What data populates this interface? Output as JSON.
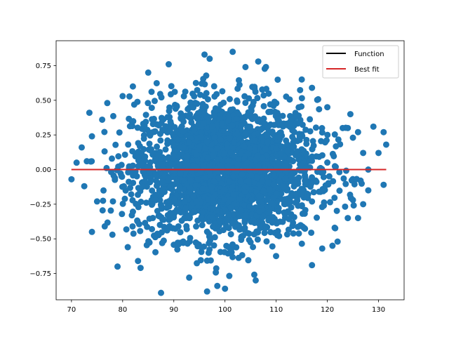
{
  "chart_data": {
    "type": "scatter",
    "title": "",
    "xlabel": "",
    "ylabel": "",
    "xlim": [
      67,
      135
    ],
    "ylim": [
      -0.94,
      0.93
    ],
    "x_ticks": [
      70,
      80,
      90,
      100,
      110,
      120,
      130
    ],
    "x_tick_labels": [
      "70",
      "80",
      "90",
      "100",
      "110",
      "120",
      "130"
    ],
    "y_ticks": [
      -0.75,
      -0.5,
      -0.25,
      0.0,
      0.25,
      0.5,
      0.75
    ],
    "y_tick_labels": [
      "−0.75",
      "−0.50",
      "−0.25",
      "0.00",
      "0.25",
      "0.50",
      "0.75"
    ],
    "grid": false,
    "legend_position": "top-right",
    "scatter": {
      "color": "#1f77b4",
      "cloud": {
        "x_mean": 100,
        "x_std": 9,
        "y_mean": 0,
        "y_std": 0.25
      },
      "outliers": [
        {
          "x": 70,
          "y": -0.07
        },
        {
          "x": 71,
          "y": 0.05
        },
        {
          "x": 72,
          "y": 0.16
        },
        {
          "x": 72.5,
          "y": -0.12
        },
        {
          "x": 73,
          "y": 0.06
        },
        {
          "x": 73.5,
          "y": 0.41
        },
        {
          "x": 74,
          "y": 0.24
        },
        {
          "x": 74,
          "y": -0.45
        },
        {
          "x": 75,
          "y": -0.23
        },
        {
          "x": 76,
          "y": 0.36
        },
        {
          "x": 76.5,
          "y": -0.41
        },
        {
          "x": 77,
          "y": 0.48
        },
        {
          "x": 78,
          "y": -0.47
        },
        {
          "x": 79,
          "y": -0.7
        },
        {
          "x": 80,
          "y": 0.53
        },
        {
          "x": 81,
          "y": -0.56
        },
        {
          "x": 82,
          "y": 0.6
        },
        {
          "x": 83,
          "y": -0.66
        },
        {
          "x": 83.5,
          "y": -0.71
        },
        {
          "x": 85,
          "y": 0.7
        },
        {
          "x": 87.5,
          "y": -0.89
        },
        {
          "x": 89,
          "y": 0.76
        },
        {
          "x": 93,
          "y": -0.78
        },
        {
          "x": 96,
          "y": 0.83
        },
        {
          "x": 96.5,
          "y": -0.88
        },
        {
          "x": 97,
          "y": 0.8
        },
        {
          "x": 98.5,
          "y": -0.84
        },
        {
          "x": 100,
          "y": -0.86
        },
        {
          "x": 101.5,
          "y": 0.85
        },
        {
          "x": 104,
          "y": 0.74
        },
        {
          "x": 106,
          "y": -0.8
        },
        {
          "x": 106.5,
          "y": 0.78
        },
        {
          "x": 108,
          "y": 0.74
        },
        {
          "x": 115,
          "y": 0.65
        },
        {
          "x": 117,
          "y": 0.59
        },
        {
          "x": 117,
          "y": -0.69
        },
        {
          "x": 119,
          "y": -0.57
        },
        {
          "x": 120,
          "y": 0.45
        },
        {
          "x": 121,
          "y": -0.55
        },
        {
          "x": 122,
          "y": -0.52
        },
        {
          "x": 123,
          "y": 0.3
        },
        {
          "x": 124,
          "y": 0.3
        },
        {
          "x": 124,
          "y": -0.35
        },
        {
          "x": 124.5,
          "y": 0.4
        },
        {
          "x": 125,
          "y": 0.23
        },
        {
          "x": 125,
          "y": -0.22
        },
        {
          "x": 126,
          "y": -0.35
        },
        {
          "x": 126,
          "y": 0.27
        },
        {
          "x": 126.5,
          "y": -0.08
        },
        {
          "x": 127,
          "y": 0.12
        },
        {
          "x": 127,
          "y": -0.25
        },
        {
          "x": 128,
          "y": 0.0
        },
        {
          "x": 128,
          "y": -0.15
        },
        {
          "x": 129,
          "y": 0.31
        },
        {
          "x": 130,
          "y": 0.12
        },
        {
          "x": 131,
          "y": 0.27
        },
        {
          "x": 131,
          "y": -0.11
        },
        {
          "x": 131.5,
          "y": 0.18
        }
      ]
    },
    "series": [
      {
        "name": "Function",
        "type": "line",
        "color": "#000000",
        "x": [
          70,
          131.5
        ],
        "y": [
          0.0,
          0.0
        ]
      },
      {
        "name": "Best fit",
        "type": "line",
        "color": "#d62728",
        "x": [
          70,
          131.5
        ],
        "y": [
          0.0,
          0.0
        ]
      }
    ]
  }
}
